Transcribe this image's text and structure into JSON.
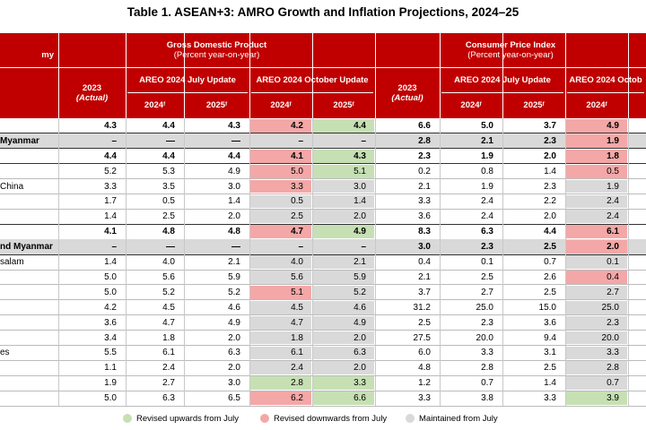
{
  "title": "Table 1. ASEAN+3: AMRO Growth and Inflation Projections, 2024–25",
  "header": {
    "first_col": "my",
    "groups": [
      {
        "title": "Gross Domestic Product",
        "subtitle": "(Percent year-on-year)",
        "actual": [
          "2023",
          "(Actual)"
        ],
        "updates": [
          {
            "title": "AREO 2024 July Update",
            "years": [
              [
                "2024",
                "f"
              ],
              [
                "2025",
                "f"
              ]
            ]
          },
          {
            "title": "AREO 2024 October Update",
            "years": [
              [
                "2024",
                "f"
              ],
              [
                "2025",
                "f"
              ]
            ]
          }
        ]
      },
      {
        "title": "Consumer Price Index",
        "subtitle": "(Percent year-on-year)",
        "actual": [
          "2023",
          "(Actual)"
        ],
        "updates": [
          {
            "title": "AREO 2024 July Update",
            "years": [
              [
                "2024",
                "f"
              ],
              [
                "2025",
                "f"
              ]
            ]
          },
          {
            "title": "AREO 2024 Octob",
            "years": [
              [
                "2024",
                "f"
              ]
            ]
          }
        ]
      }
    ]
  },
  "rows": [
    {
      "bold": true,
      "cells": [
        "4.3",
        "4.4",
        "4.3",
        "4.2",
        "4.4",
        "6.6",
        "5.0",
        "3.7",
        "4.9"
      ],
      "fills": [
        null,
        null,
        null,
        "#f4a7a7",
        "#c6e0b4",
        null,
        null,
        null,
        "#f4a7a7"
      ]
    },
    {
      "label": "Myanmar",
      "bold": true,
      "shaded": true,
      "cells": [
        "–",
        "—",
        "—",
        "–",
        "–",
        "2.8",
        "2.1",
        "2.3",
        "1.9"
      ],
      "fills": [
        null,
        null,
        null,
        null,
        null,
        null,
        null,
        null,
        "#f4a7a7"
      ]
    },
    {
      "bold": true,
      "cells": [
        "4.4",
        "4.4",
        "4.4",
        "4.1",
        "4.3",
        "2.3",
        "1.9",
        "2.0",
        "1.8"
      ],
      "fills": [
        null,
        null,
        null,
        "#f4a7a7",
        "#c6e0b4",
        null,
        null,
        null,
        "#f4a7a7"
      ]
    },
    {
      "cells": [
        "5.2",
        "5.3",
        "4.9",
        "5.0",
        "5.1",
        "0.2",
        "0.8",
        "1.4",
        "0.5"
      ],
      "fills": [
        null,
        null,
        null,
        "#f4a7a7",
        "#c6e0b4",
        null,
        null,
        null,
        "#f4a7a7"
      ]
    },
    {
      "label": "China",
      "cells": [
        "3.3",
        "3.5",
        "3.0",
        "3.3",
        "3.0",
        "2.1",
        "1.9",
        "2.3",
        "1.9"
      ],
      "fills": [
        null,
        null,
        null,
        "#f4a7a7",
        "#d9d9d9",
        null,
        null,
        null,
        "#d9d9d9"
      ]
    },
    {
      "cells": [
        "1.7",
        "0.5",
        "1.4",
        "0.5",
        "1.4",
        "3.3",
        "2.4",
        "2.2",
        "2.4"
      ],
      "fills": [
        null,
        null,
        null,
        "#d9d9d9",
        "#d9d9d9",
        null,
        null,
        null,
        "#d9d9d9"
      ]
    },
    {
      "cells": [
        "1.4",
        "2.5",
        "2.0",
        "2.5",
        "2.0",
        "3.6",
        "2.4",
        "2.0",
        "2.4"
      ],
      "fills": [
        null,
        null,
        null,
        "#d9d9d9",
        "#d9d9d9",
        null,
        null,
        null,
        "#d9d9d9"
      ]
    },
    {
      "bold": true,
      "cells": [
        "4.1",
        "4.8",
        "4.8",
        "4.7",
        "4.9",
        "8.3",
        "6.3",
        "4.4",
        "6.1"
      ],
      "fills": [
        null,
        null,
        null,
        "#f4a7a7",
        "#c6e0b4",
        null,
        null,
        null,
        "#f4a7a7"
      ]
    },
    {
      "label": "nd Myanmar",
      "bold": true,
      "shaded": true,
      "cells": [
        "–",
        "—",
        "—",
        "–",
        "–",
        "3.0",
        "2.3",
        "2.5",
        "2.0"
      ],
      "fills": [
        null,
        null,
        null,
        null,
        null,
        null,
        null,
        null,
        "#f4a7a7"
      ]
    },
    {
      "label": "salam",
      "cells": [
        "1.4",
        "4.0",
        "2.1",
        "4.0",
        "2.1",
        "0.4",
        "0.1",
        "0.7",
        "0.1"
      ],
      "fills": [
        null,
        null,
        null,
        "#d9d9d9",
        "#d9d9d9",
        null,
        null,
        null,
        "#d9d9d9"
      ]
    },
    {
      "cells": [
        "5.0",
        "5.6",
        "5.9",
        "5.6",
        "5.9",
        "2.1",
        "2.5",
        "2.6",
        "0.4"
      ],
      "fills": [
        null,
        null,
        null,
        "#d9d9d9",
        "#d9d9d9",
        null,
        null,
        null,
        "#f4a7a7"
      ]
    },
    {
      "cells": [
        "5.0",
        "5.2",
        "5.2",
        "5.1",
        "5.2",
        "3.7",
        "2.7",
        "2.5",
        "2.7"
      ],
      "fills": [
        null,
        null,
        null,
        "#f4a7a7",
        "#d9d9d9",
        null,
        null,
        null,
        "#d9d9d9"
      ]
    },
    {
      "cells": [
        "4.2",
        "4.5",
        "4.6",
        "4.5",
        "4.6",
        "31.2",
        "25.0",
        "15.0",
        "25.0"
      ],
      "fills": [
        null,
        null,
        null,
        "#d9d9d9",
        "#d9d9d9",
        null,
        null,
        null,
        "#d9d9d9"
      ]
    },
    {
      "cells": [
        "3.6",
        "4.7",
        "4.9",
        "4.7",
        "4.9",
        "2.5",
        "2.3",
        "3.6",
        "2.3"
      ],
      "fills": [
        null,
        null,
        null,
        "#d9d9d9",
        "#d9d9d9",
        null,
        null,
        null,
        "#d9d9d9"
      ]
    },
    {
      "cells": [
        "3.4",
        "1.8",
        "2.0",
        "1.8",
        "2.0",
        "27.5",
        "20.0",
        "9.4",
        "20.0"
      ],
      "fills": [
        null,
        null,
        null,
        "#d9d9d9",
        "#d9d9d9",
        null,
        null,
        null,
        "#d9d9d9"
      ]
    },
    {
      "label": "es",
      "cells": [
        "5.5",
        "6.1",
        "6.3",
        "6.1",
        "6.3",
        "6.0",
        "3.3",
        "3.1",
        "3.3"
      ],
      "fills": [
        null,
        null,
        null,
        "#d9d9d9",
        "#d9d9d9",
        null,
        null,
        null,
        "#d9d9d9"
      ]
    },
    {
      "cells": [
        "1.1",
        "2.4",
        "2.0",
        "2.4",
        "2.0",
        "4.8",
        "2.8",
        "2.5",
        "2.8"
      ],
      "fills": [
        null,
        null,
        null,
        "#d9d9d9",
        "#d9d9d9",
        null,
        null,
        null,
        "#d9d9d9"
      ]
    },
    {
      "cells": [
        "1.9",
        "2.7",
        "3.0",
        "2.8",
        "3.3",
        "1.2",
        "0.7",
        "1.4",
        "0.7"
      ],
      "fills": [
        null,
        null,
        null,
        "#c6e0b4",
        "#c6e0b4",
        null,
        null,
        null,
        "#d9d9d9"
      ]
    },
    {
      "cells": [
        "5.0",
        "6.3",
        "6.5",
        "6.2",
        "6.6",
        "3.3",
        "3.8",
        "3.3",
        "3.9"
      ],
      "fills": [
        null,
        null,
        null,
        "#f4a7a7",
        "#c6e0b4",
        null,
        null,
        null,
        "#c6e0b4"
      ]
    }
  ],
  "header_color": "#c00000",
  "shade_color": "#d9d9d9",
  "legend": [
    {
      "label": "Revised upwards from July",
      "color": "#c6e0b4"
    },
    {
      "label": "Revised downwards from July",
      "color": "#f4a7a7"
    },
    {
      "label": "Maintained from July",
      "color": "#d9d9d9"
    }
  ]
}
